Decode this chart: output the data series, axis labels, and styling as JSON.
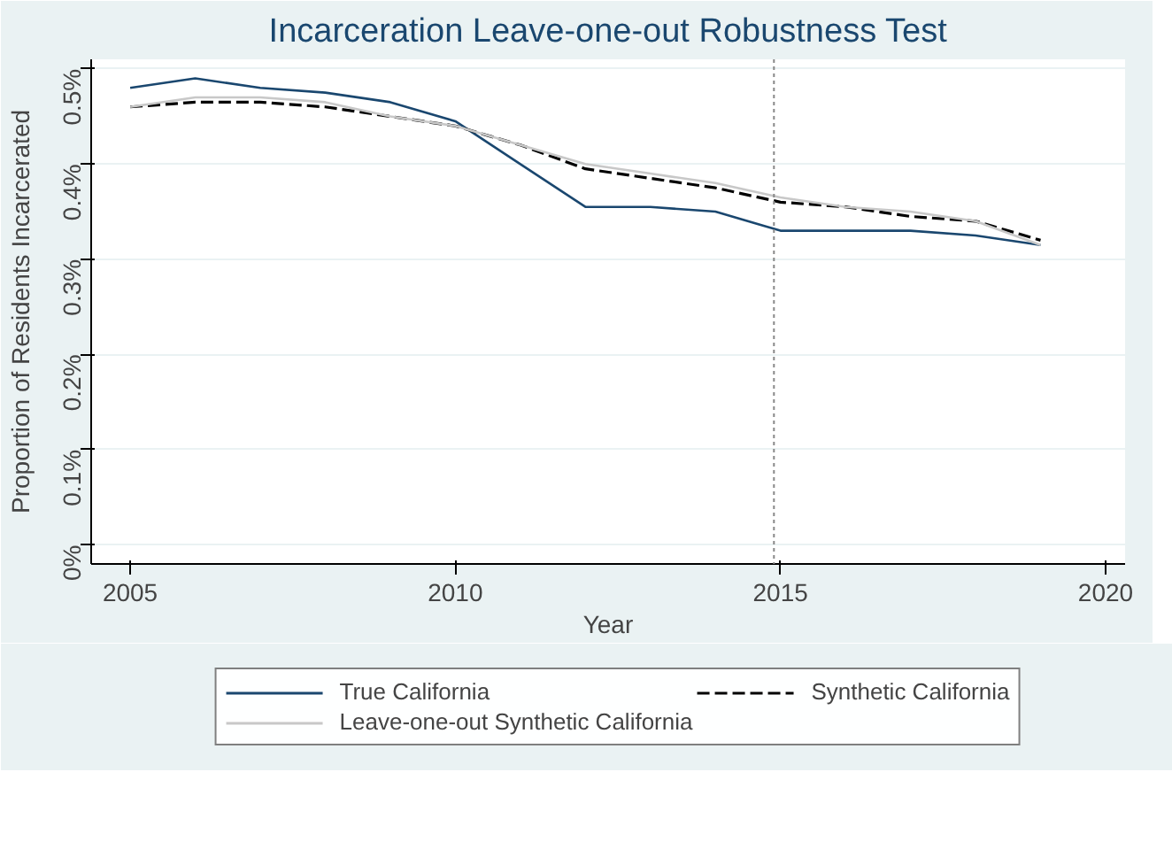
{
  "chart_data": {
    "type": "line",
    "title": "Incarceration Leave-one-out Robustness Test",
    "xlabel": "Year",
    "ylabel": "Proportion of Residents Incarcerated",
    "x": [
      2005,
      2006,
      2007,
      2008,
      2009,
      2010,
      2011,
      2012,
      2013,
      2014,
      2015,
      2016,
      2017,
      2018,
      2019
    ],
    "series": [
      {
        "name": "True California",
        "color": "#1a476f",
        "line_style": "solid",
        "values": [
          0.48,
          0.49,
          0.48,
          0.475,
          0.465,
          0.445,
          0.4,
          0.355,
          0.355,
          0.35,
          0.33,
          0.33,
          0.33,
          0.325,
          0.315
        ]
      },
      {
        "name": "Synthetic California",
        "color": "#000000",
        "line_style": "dashed",
        "values": [
          0.46,
          0.465,
          0.465,
          0.46,
          0.45,
          0.44,
          0.42,
          0.395,
          0.385,
          0.375,
          0.36,
          0.355,
          0.345,
          0.34,
          0.32
        ]
      },
      {
        "name": "Leave-one-out Synthetic California",
        "color": "#c8c8c8",
        "line_style": "solid",
        "values": [
          0.46,
          0.47,
          0.47,
          0.465,
          0.45,
          0.44,
          0.42,
          0.4,
          0.39,
          0.38,
          0.365,
          0.355,
          0.35,
          0.34,
          0.315
        ]
      }
    ],
    "xlim": [
      2004.4,
      2020.3
    ],
    "ylim": [
      -0.02,
      0.51
    ],
    "xticks": [
      2005,
      2010,
      2015,
      2020
    ],
    "yticks": [
      {
        "value": 0,
        "label": "0%"
      },
      {
        "value": 0.1,
        "label": "0.1%"
      },
      {
        "value": 0.2,
        "label": "0.2%"
      },
      {
        "value": 0.3,
        "label": "0.3%"
      },
      {
        "value": 0.4,
        "label": "0.4%"
      },
      {
        "value": 0.5,
        "label": "0.5%"
      }
    ],
    "ref_lines": [
      {
        "axis": "x",
        "value": 2014.9,
        "color": "#888888",
        "line_style": "dotted"
      }
    ],
    "grid": "y",
    "legend": "bottom",
    "marker": "none"
  }
}
